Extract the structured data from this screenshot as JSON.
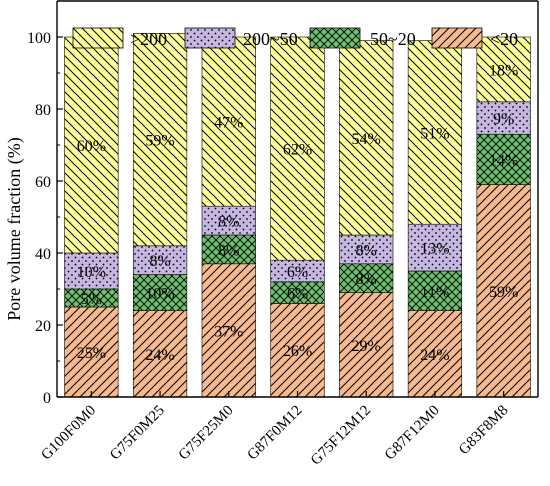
{
  "chart_data": {
    "type": "bar",
    "stacked": true,
    "ylabel": "Pore volume fraction (%)",
    "xlabel": "",
    "ylim": [
      0,
      110
    ],
    "yticks": [
      0,
      20,
      40,
      60,
      80,
      100
    ],
    "legend_position": "top",
    "categories": [
      "G100F0M0",
      "G75F0M25",
      "G75F25M0",
      "G87F0M12",
      "G75F12M12",
      "G87F12M0",
      "G83F8M8"
    ],
    "series": [
      {
        "name": "<20",
        "values": [
          25,
          24,
          37,
          26,
          29,
          24,
          59
        ],
        "labels": [
          "25%",
          "24%",
          "37%",
          "26%",
          "29%",
          "24%",
          "59%"
        ],
        "color": "#f7b98e",
        "pattern": "diag-fwd"
      },
      {
        "name": "50~20",
        "values": [
          5,
          10,
          8,
          6,
          8,
          11,
          14
        ],
        "labels": [
          "5%",
          "10%",
          "8%",
          "6%",
          "8%",
          "11%",
          "14%"
        ],
        "color": "#6fbf6f",
        "pattern": "crosshatch"
      },
      {
        "name": "200~50",
        "values": [
          10,
          8,
          8,
          6,
          8,
          13,
          9
        ],
        "labels": [
          "10%",
          "8%",
          "8%",
          "6%",
          "8%",
          "13%",
          "9%"
        ],
        "color": "#c6b6e2",
        "pattern": "dots"
      },
      {
        "name": ">200",
        "values": [
          60,
          59,
          47,
          62,
          54,
          51,
          18
        ],
        "labels": [
          "60%",
          "59%",
          "47%",
          "62%",
          "54%",
          "51%",
          "18%"
        ],
        "color": "#ffff99",
        "pattern": "diag-back"
      }
    ],
    "legend_order": [
      3,
      2,
      1,
      0
    ]
  }
}
